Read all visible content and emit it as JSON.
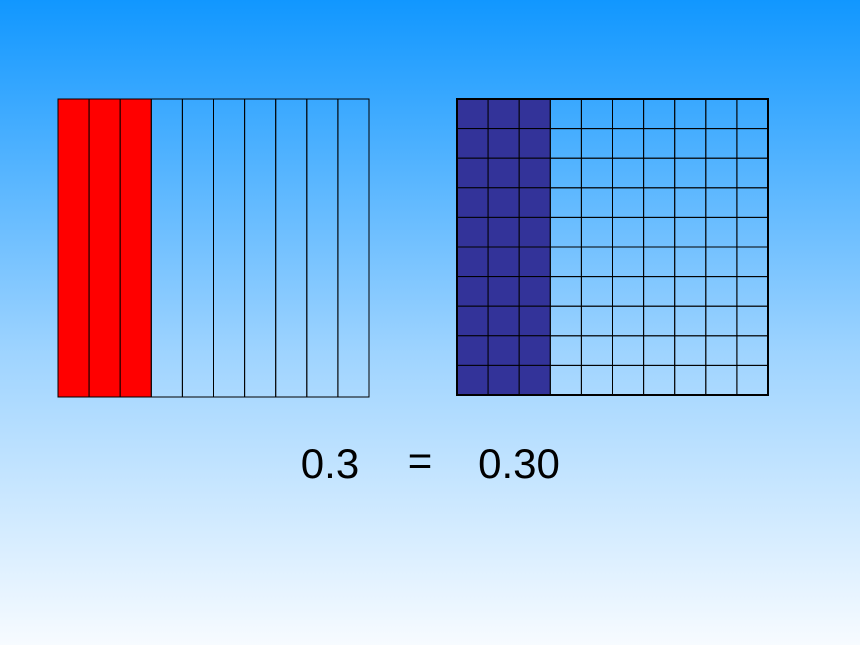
{
  "equation": {
    "left": "0.3",
    "operator": "=",
    "right": "0.30"
  }
}
